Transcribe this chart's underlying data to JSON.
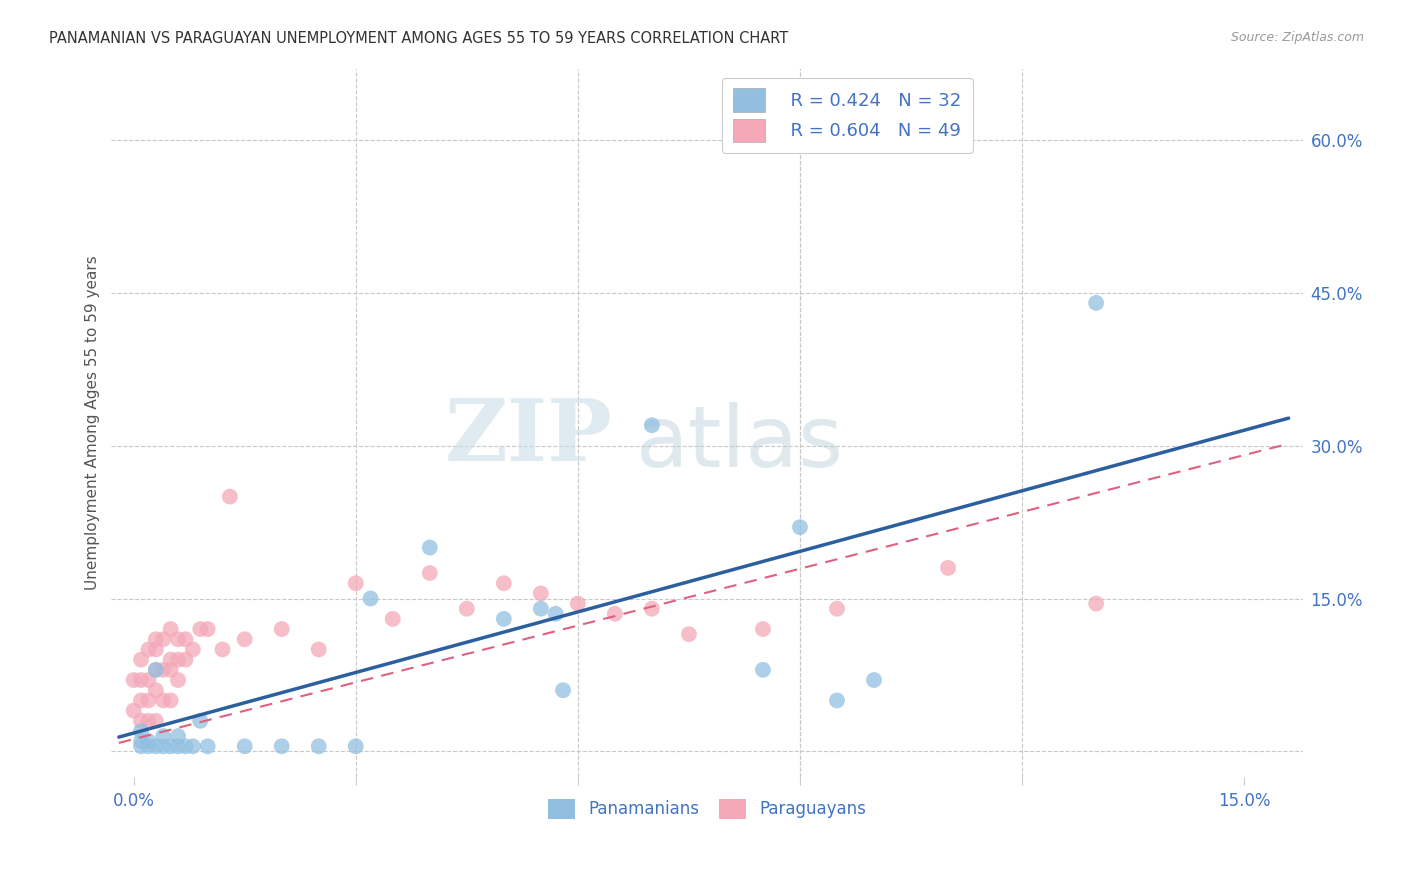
{
  "title": "PANAMANIAN VS PARAGUAYAN UNEMPLOYMENT AMONG AGES 55 TO 59 YEARS CORRELATION CHART",
  "source": "Source: ZipAtlas.com",
  "ylabel": "Unemployment Among Ages 55 to 59 years",
  "xlim": [
    -0.003,
    0.158
  ],
  "ylim": [
    -0.025,
    0.67
  ],
  "legend_R_blue": "R = 0.424",
  "legend_N_blue": "N = 32",
  "legend_R_pink": "R = 0.604",
  "legend_N_pink": "N = 49",
  "blue_color": "#92bfe0",
  "pink_color": "#f4a8b8",
  "blue_line_color": "#2c5f9e",
  "pink_line_color": "#e06080",
  "blue_line_x0": 0.0,
  "blue_line_y0": 0.018,
  "blue_line_x1": 0.155,
  "blue_line_y1": 0.325,
  "pink_line_x0": 0.0,
  "pink_line_y0": 0.012,
  "pink_line_x1": 0.155,
  "pink_line_y1": 0.3,
  "panama_x": [
    0.001,
    0.001,
    0.001,
    0.002,
    0.002,
    0.003,
    0.003,
    0.004,
    0.004,
    0.005,
    0.006,
    0.006,
    0.007,
    0.008,
    0.009,
    0.01,
    0.015,
    0.02,
    0.025,
    0.03,
    0.032,
    0.04,
    0.05,
    0.055,
    0.057,
    0.058,
    0.07,
    0.085,
    0.09,
    0.095,
    0.1,
    0.13
  ],
  "panama_y": [
    0.005,
    0.01,
    0.02,
    0.005,
    0.01,
    0.005,
    0.08,
    0.005,
    0.015,
    0.005,
    0.005,
    0.015,
    0.005,
    0.005,
    0.03,
    0.005,
    0.005,
    0.005,
    0.005,
    0.005,
    0.15,
    0.2,
    0.13,
    0.14,
    0.135,
    0.06,
    0.32,
    0.08,
    0.22,
    0.05,
    0.07,
    0.44
  ],
  "paraguay_x": [
    0.0,
    0.0,
    0.001,
    0.001,
    0.001,
    0.001,
    0.002,
    0.002,
    0.002,
    0.002,
    0.003,
    0.003,
    0.003,
    0.003,
    0.003,
    0.004,
    0.004,
    0.004,
    0.005,
    0.005,
    0.005,
    0.005,
    0.006,
    0.006,
    0.006,
    0.007,
    0.007,
    0.008,
    0.009,
    0.01,
    0.012,
    0.013,
    0.015,
    0.02,
    0.025,
    0.03,
    0.035,
    0.04,
    0.045,
    0.05,
    0.055,
    0.06,
    0.065,
    0.07,
    0.075,
    0.085,
    0.095,
    0.11,
    0.13
  ],
  "paraguay_y": [
    0.04,
    0.07,
    0.03,
    0.05,
    0.07,
    0.09,
    0.03,
    0.05,
    0.07,
    0.1,
    0.03,
    0.06,
    0.08,
    0.1,
    0.11,
    0.05,
    0.08,
    0.11,
    0.05,
    0.08,
    0.09,
    0.12,
    0.07,
    0.09,
    0.11,
    0.09,
    0.11,
    0.1,
    0.12,
    0.12,
    0.1,
    0.25,
    0.11,
    0.12,
    0.1,
    0.165,
    0.13,
    0.175,
    0.14,
    0.165,
    0.155,
    0.145,
    0.135,
    0.14,
    0.115,
    0.12,
    0.14,
    0.18,
    0.145
  ]
}
